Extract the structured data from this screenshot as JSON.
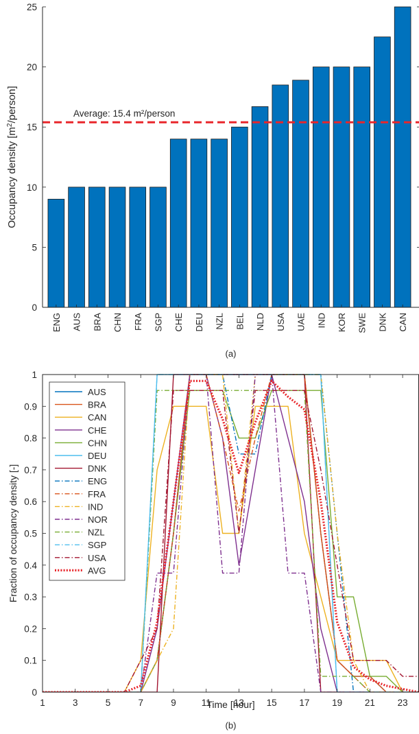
{
  "chart_data": [
    {
      "type": "bar",
      "caption": "(a)",
      "ylabel": "Occupancy density [m²/person]",
      "ylim": [
        0,
        25
      ],
      "yticks": [
        0,
        5,
        10,
        15,
        20,
        25
      ],
      "categories": [
        "ENG",
        "AUS",
        "BRA",
        "CHN",
        "FRA",
        "SGP",
        "CHE",
        "DEU",
        "NZL",
        "BEL",
        "NLD",
        "USA",
        "UAE",
        "IND",
        "KOR",
        "SWE",
        "DNK",
        "CAN"
      ],
      "values": [
        9,
        10,
        10,
        10,
        10,
        10,
        14,
        14,
        14,
        15,
        16.7,
        18.5,
        18.9,
        20,
        20,
        20,
        22.5,
        25
      ],
      "bar_color": "#0072BD",
      "average": {
        "value": 15.4,
        "label": "Average: 15.4 m²/person",
        "color": "#E8262B"
      },
      "grid": false
    },
    {
      "type": "line",
      "caption": "(b)",
      "xlabel": "Time [hour]",
      "ylabel": "Fraction of occupancy density [-]",
      "xlim": [
        1,
        24
      ],
      "ylim": [
        0,
        1
      ],
      "xticks": [
        1,
        3,
        5,
        7,
        9,
        11,
        13,
        15,
        17,
        19,
        21,
        23
      ],
      "yticks": [
        0,
        0.1,
        0.2,
        0.3,
        0.4,
        0.5,
        0.6,
        0.7,
        0.8,
        0.9,
        1
      ],
      "legend_position": "top-left",
      "grid": false,
      "x": [
        1,
        2,
        3,
        4,
        5,
        6,
        7,
        8,
        9,
        10,
        11,
        12,
        13,
        14,
        15,
        16,
        17,
        18,
        19,
        20,
        21,
        22,
        23,
        24
      ],
      "series": [
        {
          "name": "AUS",
          "color": "#0072BD",
          "style": "solid",
          "values": [
            0,
            0,
            0,
            0,
            0,
            0,
            0,
            0.1,
            0.5,
            1,
            1,
            1,
            1,
            1,
            1,
            1,
            1,
            0.5,
            0.1,
            0.05,
            0.05,
            0,
            0,
            0
          ]
        },
        {
          "name": "BRA",
          "color": "#D95319",
          "style": "solid",
          "values": [
            0,
            0,
            0,
            0,
            0,
            0,
            0,
            0.1,
            0.5,
            1,
            1,
            1,
            1,
            1,
            1,
            1,
            1,
            0.5,
            0.1,
            0.05,
            0.05,
            0,
            0,
            0
          ]
        },
        {
          "name": "CAN",
          "color": "#EDB120",
          "style": "solid",
          "values": [
            0,
            0,
            0,
            0,
            0,
            0,
            0.1,
            0.7,
            0.9,
            0.9,
            0.9,
            0.5,
            0.5,
            0.9,
            0.9,
            0.9,
            0.5,
            0.3,
            0.1,
            0.1,
            0.1,
            0.1,
            0,
            0
          ]
        },
        {
          "name": "CHE",
          "color": "#7E2F8E",
          "style": "solid",
          "values": [
            0,
            0,
            0,
            0,
            0,
            0,
            0,
            0.2,
            0.6,
            1,
            1,
            0.8,
            0.4,
            0.7,
            1,
            0.8,
            0.6,
            0.2,
            0,
            0,
            0,
            0,
            0,
            0
          ]
        },
        {
          "name": "CHN",
          "color": "#77AC30",
          "style": "solid",
          "values": [
            0,
            0,
            0,
            0,
            0,
            0,
            0,
            0.1,
            0.5,
            0.95,
            0.95,
            0.95,
            0.8,
            0.8,
            0.95,
            0.95,
            0.95,
            0.95,
            0.3,
            0.3,
            0.05,
            0.05,
            0,
            0
          ]
        },
        {
          "name": "DEU",
          "color": "#4DBEEE",
          "style": "solid",
          "values": [
            0,
            0,
            0,
            0,
            0,
            0,
            0,
            1,
            1,
            1,
            1,
            1,
            1,
            1,
            1,
            1,
            1,
            1,
            0,
            0,
            0,
            0,
            0,
            0
          ]
        },
        {
          "name": "DNK",
          "color": "#A2142F",
          "style": "solid",
          "values": [
            0,
            0,
            0,
            0,
            0,
            0,
            0,
            0,
            1,
            1,
            1,
            1,
            1,
            1,
            1,
            1,
            1,
            0,
            0,
            0,
            0,
            0,
            0,
            0
          ]
        },
        {
          "name": "ENG",
          "color": "#0072BD",
          "style": "dashdot",
          "values": [
            0,
            0,
            0,
            0,
            0,
            0,
            0,
            0.1,
            0.5,
            1,
            1,
            1,
            0.75,
            0.75,
            1,
            1,
            1,
            1,
            0.5,
            0,
            0,
            0,
            0,
            0
          ]
        },
        {
          "name": "FRA",
          "color": "#D95319",
          "style": "dashdot",
          "values": [
            0,
            0,
            0,
            0,
            0,
            0,
            0,
            0.1,
            0.5,
            1,
            1,
            0.8,
            0.57,
            0.8,
            1,
            1,
            1,
            0.5,
            0.1,
            0.05,
            0,
            0,
            0,
            0
          ]
        },
        {
          "name": "IND",
          "color": "#EDB120",
          "style": "dashdot",
          "values": [
            0,
            0,
            0,
            0,
            0,
            0,
            0,
            0.1,
            0.2,
            1,
            1,
            1,
            0.5,
            1,
            1,
            1,
            1,
            1,
            0.5,
            0.1,
            0,
            0,
            0,
            0
          ]
        },
        {
          "name": "NOR",
          "color": "#7E2F8E",
          "style": "dashdot",
          "values": [
            0,
            0,
            0,
            0,
            0,
            0,
            0,
            0.375,
            0.375,
            1,
            1,
            0.375,
            0.375,
            1,
            1,
            0.375,
            0.375,
            0,
            0,
            0,
            0,
            0,
            0,
            0
          ]
        },
        {
          "name": "NZL",
          "color": "#77AC30",
          "style": "dashdot",
          "values": [
            0,
            0,
            0,
            0,
            0,
            0,
            0,
            0.95,
            0.95,
            0.95,
            0.95,
            0.95,
            0.95,
            0.95,
            0.95,
            0.95,
            0.95,
            0.05,
            0.05,
            0.05,
            0,
            0,
            0,
            0
          ]
        },
        {
          "name": "SGP",
          "color": "#4DBEEE",
          "style": "dashdot",
          "values": [
            0,
            0,
            0,
            0,
            0,
            0,
            0,
            1,
            1,
            1,
            1,
            1,
            1,
            1,
            1,
            1,
            1,
            1,
            0,
            0,
            0,
            0,
            0,
            0
          ]
        },
        {
          "name": "USA",
          "color": "#A2142F",
          "style": "dashdot",
          "values": [
            0,
            0,
            0,
            0,
            0,
            0,
            0.1,
            0.2,
            0.95,
            0.95,
            0.95,
            0.95,
            0.5,
            0.95,
            0.95,
            0.95,
            0.95,
            0.7,
            0.4,
            0.1,
            0.1,
            0.1,
            0.05,
            0.05
          ]
        },
        {
          "name": "AVG",
          "color": "#E8262B",
          "style": "dotted",
          "values": [
            0,
            0,
            0,
            0,
            0,
            0,
            0.02,
            0.22,
            0.6,
            0.98,
            0.98,
            0.86,
            0.69,
            0.85,
            0.98,
            0.93,
            0.89,
            0.6,
            0.22,
            0.08,
            0.04,
            0.02,
            0.01,
            0
          ]
        }
      ]
    }
  ]
}
